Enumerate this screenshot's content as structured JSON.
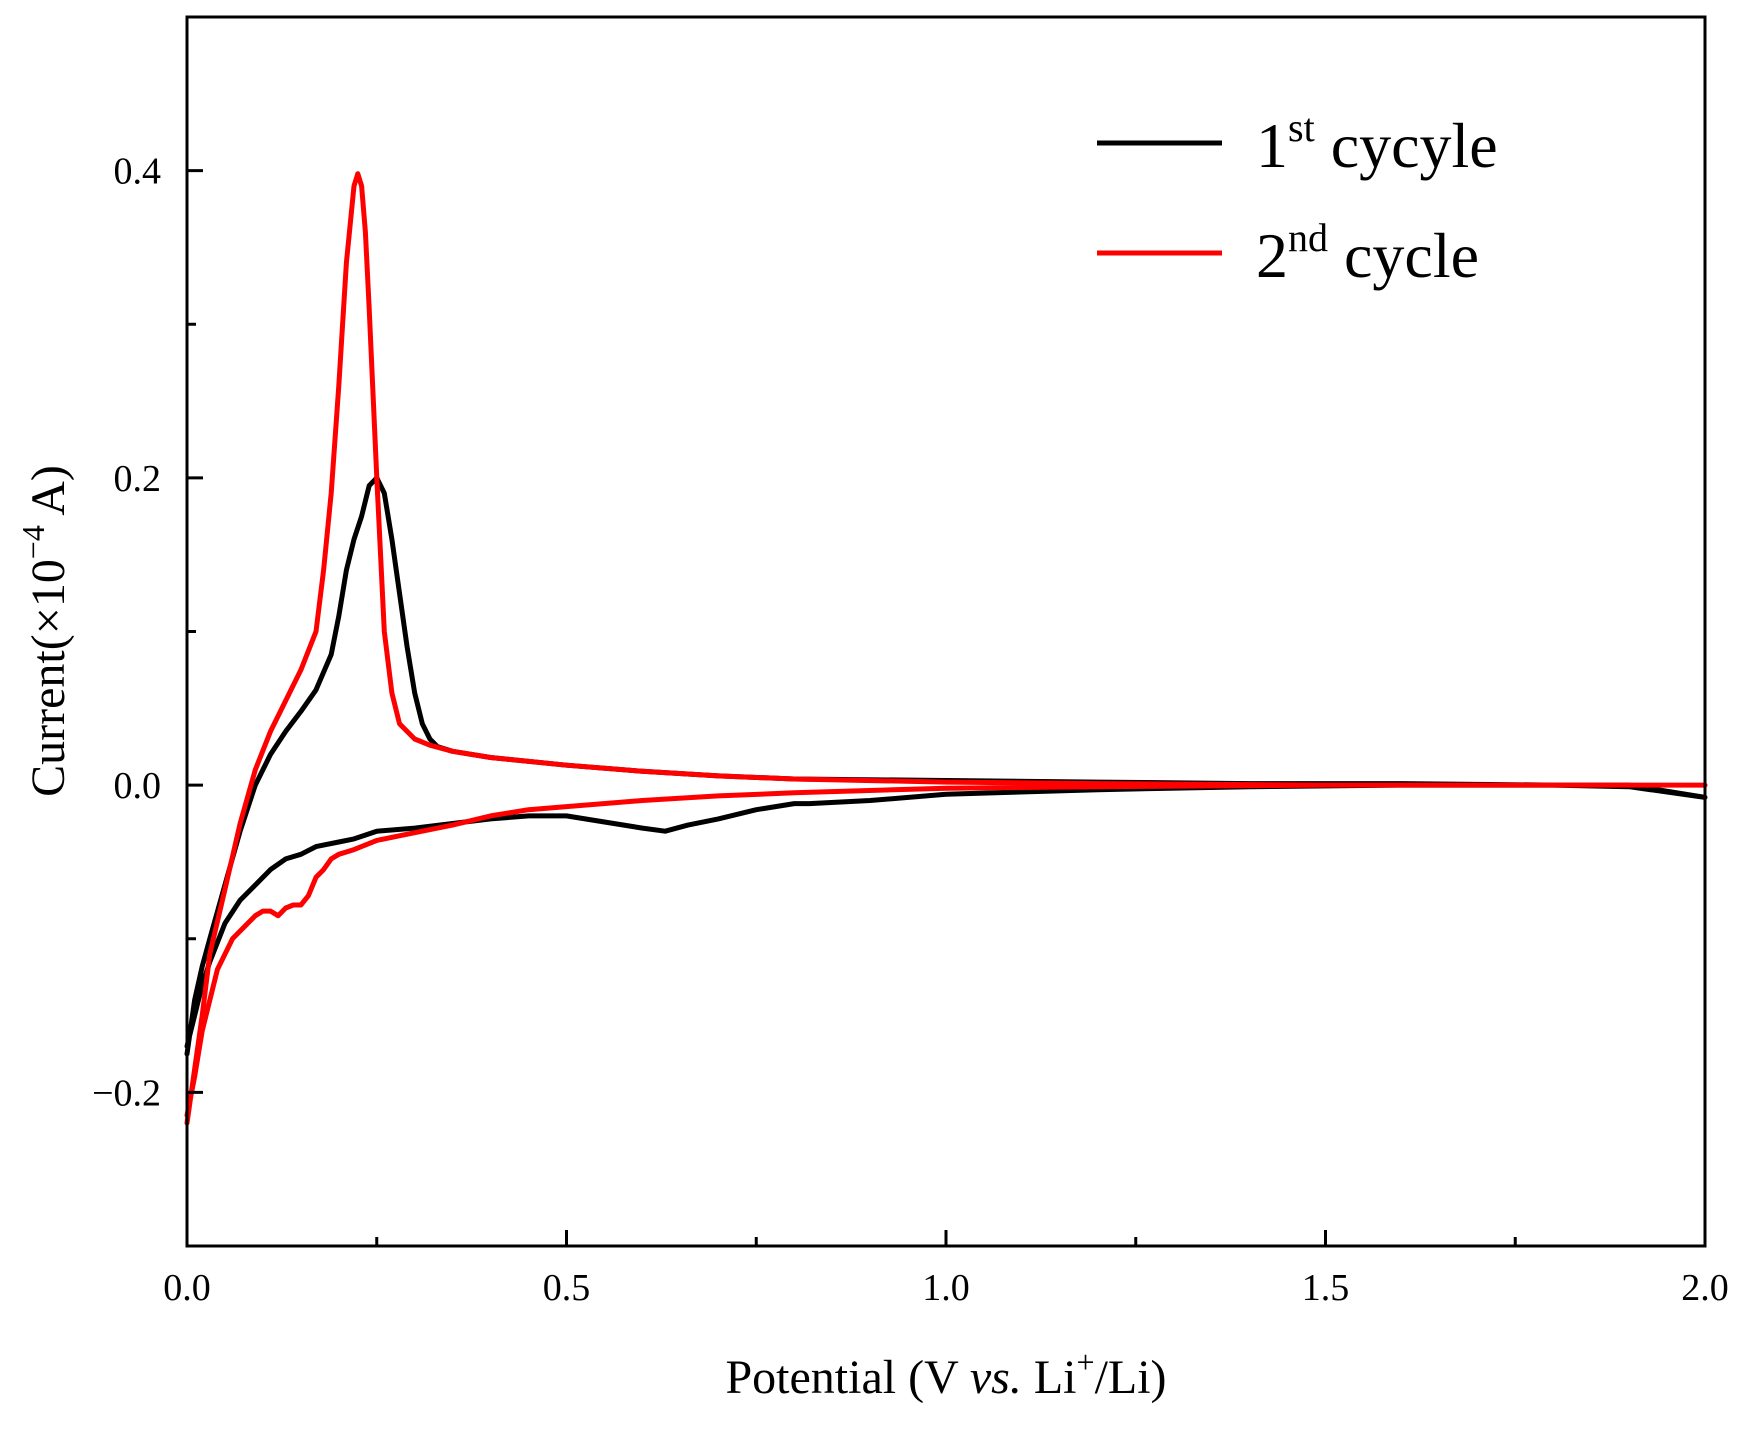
{
  "chart_data": {
    "type": "line",
    "title": "",
    "xlabel": {
      "prefix": "Potential (V ",
      "italic": "vs.",
      "middle": " Li",
      "sup": "+",
      "suffix": "/Li)"
    },
    "ylabel": {
      "prefix": "Current(×10",
      "sup": "−4",
      "suffix": " A)"
    },
    "xlim": [
      0.0,
      2.0
    ],
    "ylim": [
      -0.3,
      0.5
    ],
    "x_ticks": [
      0.0,
      0.5,
      1.0,
      1.5,
      2.0
    ],
    "x_tick_labels": [
      "0.0",
      "0.5",
      "1.0",
      "1.5",
      "2.0"
    ],
    "x_minor_ticks": [
      0.25,
      0.75,
      1.25,
      1.75
    ],
    "y_ticks": [
      -0.2,
      0.0,
      0.2,
      0.4
    ],
    "y_tick_labels": [
      "−0.2",
      "0.0",
      "0.2",
      "0.4"
    ],
    "y_minor_ticks": [
      -0.1,
      0.1,
      0.3
    ],
    "grid": false,
    "legend_position": "top-right",
    "series": [
      {
        "name": "1st cycyle",
        "label_base": "1",
        "label_sup": "st",
        "label_rest": " cycyle",
        "color": "#000000",
        "x": [
          0.0,
          0.01,
          0.02,
          0.03,
          0.05,
          0.07,
          0.09,
          0.11,
          0.13,
          0.15,
          0.17,
          0.19,
          0.2,
          0.21,
          0.22,
          0.23,
          0.24,
          0.25,
          0.26,
          0.27,
          0.28,
          0.29,
          0.3,
          0.31,
          0.32,
          0.33,
          0.35,
          0.4,
          0.5,
          0.6,
          0.7,
          0.8,
          1.0,
          1.2,
          1.4,
          1.6,
          1.8,
          1.9,
          2.0,
          1.9,
          1.8,
          1.6,
          1.4,
          1.2,
          1.0,
          0.9,
          0.82,
          0.8,
          0.75,
          0.7,
          0.66,
          0.63,
          0.6,
          0.55,
          0.5,
          0.45,
          0.4,
          0.35,
          0.3,
          0.25,
          0.22,
          0.2,
          0.17,
          0.15,
          0.13,
          0.11,
          0.09,
          0.07,
          0.05,
          0.03,
          0.02,
          0.01,
          0.0
        ],
        "values": [
          -0.175,
          -0.14,
          -0.118,
          -0.1,
          -0.065,
          -0.03,
          0.0,
          0.02,
          0.035,
          0.048,
          0.062,
          0.085,
          0.11,
          0.14,
          0.16,
          0.175,
          0.195,
          0.2,
          0.19,
          0.16,
          0.125,
          0.09,
          0.06,
          0.04,
          0.03,
          0.025,
          0.022,
          0.018,
          0.013,
          0.009,
          0.006,
          0.004,
          0.003,
          0.002,
          0.001,
          0.001,
          0.0,
          -0.001,
          -0.008,
          0.0,
          0.0,
          0.0,
          -0.001,
          -0.003,
          -0.006,
          -0.01,
          -0.012,
          -0.012,
          -0.016,
          -0.022,
          -0.026,
          -0.03,
          -0.028,
          -0.024,
          -0.02,
          -0.02,
          -0.022,
          -0.025,
          -0.028,
          -0.03,
          -0.035,
          -0.037,
          -0.04,
          -0.045,
          -0.048,
          -0.055,
          -0.065,
          -0.075,
          -0.09,
          -0.115,
          -0.13,
          -0.15,
          -0.17
        ]
      },
      {
        "name": "2nd cycle",
        "label_base": "2",
        "label_sup": "nd",
        "label_rest": " cycle",
        "color": "#ff0000",
        "x": [
          0.0,
          0.01,
          0.02,
          0.03,
          0.05,
          0.07,
          0.09,
          0.11,
          0.13,
          0.15,
          0.17,
          0.18,
          0.19,
          0.2,
          0.21,
          0.22,
          0.225,
          0.23,
          0.235,
          0.24,
          0.25,
          0.26,
          0.27,
          0.28,
          0.3,
          0.32,
          0.35,
          0.4,
          0.5,
          0.6,
          0.7,
          0.8,
          1.0,
          1.2,
          1.5,
          1.8,
          2.0,
          1.8,
          1.5,
          1.2,
          1.0,
          0.8,
          0.7,
          0.6,
          0.5,
          0.45,
          0.4,
          0.35,
          0.3,
          0.25,
          0.22,
          0.2,
          0.19,
          0.18,
          0.17,
          0.16,
          0.15,
          0.14,
          0.13,
          0.12,
          0.11,
          0.1,
          0.09,
          0.08,
          0.06,
          0.04,
          0.02,
          0.01,
          0.0
        ],
        "values": [
          -0.22,
          -0.185,
          -0.15,
          -0.11,
          -0.068,
          -0.025,
          0.01,
          0.035,
          0.055,
          0.075,
          0.1,
          0.14,
          0.19,
          0.26,
          0.34,
          0.39,
          0.398,
          0.39,
          0.36,
          0.31,
          0.2,
          0.1,
          0.06,
          0.04,
          0.03,
          0.026,
          0.022,
          0.018,
          0.013,
          0.009,
          0.006,
          0.004,
          0.002,
          0.001,
          0.0,
          0.0,
          0.0,
          0.0,
          0.0,
          -0.001,
          -0.002,
          -0.005,
          -0.007,
          -0.01,
          -0.014,
          -0.016,
          -0.02,
          -0.026,
          -0.031,
          -0.036,
          -0.042,
          -0.045,
          -0.048,
          -0.055,
          -0.06,
          -0.072,
          -0.078,
          -0.078,
          -0.08,
          -0.085,
          -0.082,
          -0.082,
          -0.085,
          -0.09,
          -0.1,
          -0.12,
          -0.16,
          -0.19,
          -0.215
        ]
      }
    ]
  }
}
